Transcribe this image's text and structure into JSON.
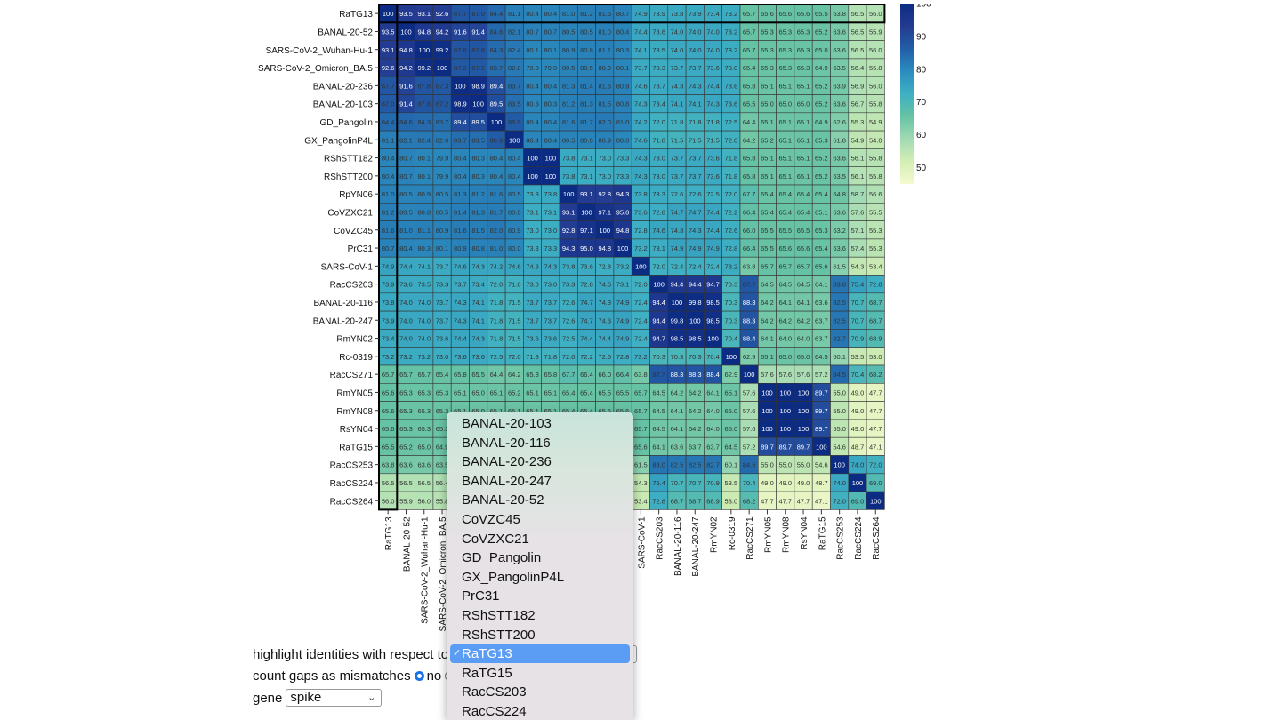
{
  "chart_data": {
    "type": "heatmap",
    "rows": [
      "RaTG13",
      "BANAL-20-52",
      "SARS-CoV-2_Wuhan-Hu-1",
      "SARS-CoV-2_Omicron_BA.5",
      "BANAL-20-236",
      "BANAL-20-103",
      "GD_Pangolin",
      "GX_PangolinP4L",
      "RShSTT182",
      "RShSTT200",
      "RpYN06",
      "CoVZXC21",
      "CoVZC45",
      "PrC31",
      "SARS-CoV-1",
      "RacCS203",
      "BANAL-20-116",
      "BANAL-20-247",
      "RmYN02",
      "Rc-0319",
      "RacCS271",
      "RmYN05",
      "RmYN08",
      "RsYN04",
      "RaTG15",
      "RacCS253",
      "RacCS224",
      "RacCS264"
    ],
    "columns": [
      "RaTG13",
      "BANAL-20-52",
      "SARS-CoV-2_Wuhan-Hu-1",
      "SARS-CoV-2_Omicron_BA.5",
      "BANAL-20-236",
      "BANAL-20-103",
      "GD_Pangolin",
      "GX_PangolinP4L",
      "RShSTT182",
      "RShSTT200",
      "RpYN06",
      "CoVZXC21",
      "CoVZC45",
      "PrC31",
      "SARS-CoV-1",
      "RacCS203",
      "BANAL-20-116",
      "BANAL-20-247",
      "RmYN02",
      "Rc-0319",
      "RacCS271",
      "RmYN05",
      "RmYN08",
      "RsYN04",
      "RaTG15",
      "RacCS253",
      "RacCS224",
      "RacCS264"
    ],
    "values": [
      [
        100,
        93.5,
        93.1,
        92.6,
        87.7,
        87.0,
        84.4,
        81.1,
        80.4,
        80.4,
        81.0,
        81.2,
        81.6,
        80.7,
        74.9,
        73.9,
        73.8,
        73.9,
        73.4,
        73.2,
        65.7,
        65.6,
        65.6,
        65.6,
        65.5,
        63.8,
        56.5,
        56.0
      ],
      [
        93.5,
        100,
        94.8,
        94.2,
        91.6,
        91.4,
        84.6,
        82.1,
        80.7,
        80.7,
        80.5,
        80.5,
        81.0,
        80.4,
        74.4,
        73.6,
        74.0,
        74.0,
        74.0,
        73.2,
        65.7,
        65.3,
        65.3,
        65.3,
        65.2,
        63.6,
        56.5,
        55.9
      ],
      [
        93.1,
        94.8,
        100,
        99.2,
        87.8,
        87.8,
        84.3,
        82.4,
        80.1,
        80.1,
        80.9,
        80.8,
        81.1,
        80.3,
        74.1,
        73.5,
        74.0,
        74.0,
        74.0,
        73.2,
        65.7,
        65.3,
        65.3,
        65.3,
        65.0,
        63.6,
        56.5,
        56.0
      ],
      [
        92.6,
        94.2,
        99.2,
        100,
        87.3,
        87.2,
        83.7,
        82.0,
        79.9,
        79.9,
        80.5,
        80.5,
        80.9,
        80.1,
        73.7,
        73.3,
        73.7,
        73.7,
        73.6,
        73.0,
        65.4,
        65.3,
        65.3,
        65.3,
        64.9,
        63.5,
        56.4,
        55.8
      ],
      [
        87.7,
        91.6,
        87.8,
        87.3,
        100,
        98.9,
        89.4,
        83.7,
        80.4,
        80.4,
        81.3,
        81.4,
        81.6,
        80.9,
        74.6,
        73.7,
        74.3,
        74.3,
        74.4,
        73.6,
        65.8,
        65.1,
        65.1,
        65.1,
        65.2,
        63.9,
        56.9,
        56.0
      ],
      [
        87.0,
        91.4,
        87.8,
        87.2,
        98.9,
        100,
        89.5,
        83.5,
        80.3,
        80.3,
        81.2,
        81.3,
        81.5,
        80.8,
        74.3,
        73.4,
        74.1,
        74.1,
        74.3,
        73.6,
        65.5,
        65.0,
        65.0,
        65.0,
        65.2,
        63.6,
        56.7,
        55.8
      ],
      [
        84.4,
        84.6,
        84.3,
        83.7,
        89.4,
        89.5,
        100,
        86.9,
        80.4,
        80.4,
        81.6,
        81.7,
        82.0,
        81.0,
        74.2,
        72.0,
        71.8,
        71.8,
        71.8,
        72.5,
        64.4,
        65.1,
        65.1,
        65.1,
        64.9,
        62.6,
        55.3,
        54.9
      ],
      [
        81.1,
        82.1,
        82.4,
        82.0,
        83.7,
        83.5,
        86.9,
        100,
        80.4,
        80.4,
        80.5,
        80.6,
        80.9,
        80.0,
        74.6,
        71.8,
        71.5,
        71.5,
        71.5,
        72.0,
        64.2,
        65.2,
        65.1,
        65.1,
        65.3,
        61.8,
        54.9,
        54.0
      ],
      [
        80.4,
        80.7,
        80.1,
        79.9,
        80.4,
        80.3,
        80.4,
        80.4,
        100,
        100,
        73.8,
        73.1,
        73.0,
        73.3,
        74.3,
        73.0,
        73.7,
        73.7,
        73.6,
        71.8,
        65.8,
        65.1,
        65.1,
        65.1,
        65.2,
        63.6,
        56.1,
        55.8
      ],
      [
        80.4,
        80.7,
        80.1,
        79.9,
        80.4,
        80.3,
        80.4,
        80.4,
        100,
        100,
        73.8,
        73.1,
        73.0,
        73.3,
        74.3,
        73.0,
        73.7,
        73.7,
        73.6,
        71.8,
        65.8,
        65.1,
        65.1,
        65.1,
        65.2,
        63.5,
        56.1,
        55.8
      ],
      [
        81.0,
        80.5,
        80.9,
        80.5,
        81.3,
        81.2,
        81.6,
        80.5,
        73.8,
        73.8,
        100,
        93.1,
        92.8,
        94.3,
        73.8,
        73.3,
        72.6,
        72.6,
        72.5,
        72.0,
        67.7,
        65.4,
        65.4,
        65.4,
        65.4,
        64.8,
        58.7,
        56.6
      ],
      [
        81.2,
        80.5,
        80.8,
        80.5,
        81.4,
        81.3,
        81.7,
        80.6,
        73.1,
        73.1,
        93.1,
        100,
        97.1,
        95.0,
        73.6,
        72.8,
        74.7,
        74.7,
        74.4,
        72.2,
        66.4,
        65.4,
        65.4,
        65.4,
        65.1,
        63.6,
        57.6,
        55.5
      ],
      [
        81.6,
        81.0,
        81.1,
        80.9,
        81.6,
        81.5,
        82.0,
        80.9,
        73.0,
        73.0,
        92.8,
        97.1,
        100,
        94.8,
        72.8,
        74.6,
        74.3,
        74.3,
        74.4,
        72.6,
        66.0,
        65.5,
        65.5,
        65.5,
        65.3,
        63.2,
        57.1,
        55.3
      ],
      [
        80.7,
        80.4,
        80.3,
        80.1,
        80.9,
        80.8,
        81.0,
        80.0,
        73.3,
        73.3,
        94.3,
        95.0,
        94.8,
        100,
        73.2,
        73.1,
        74.9,
        74.9,
        74.9,
        72.8,
        66.4,
        65.5,
        65.6,
        65.6,
        65.4,
        63.6,
        57.4,
        55.3
      ],
      [
        74.9,
        74.4,
        74.1,
        73.7,
        74.6,
        74.3,
        74.2,
        74.6,
        74.3,
        74.3,
        73.8,
        73.6,
        72.8,
        73.2,
        100,
        72.0,
        72.4,
        72.4,
        72.4,
        73.2,
        63.8,
        65.7,
        65.7,
        65.7,
        65.6,
        61.5,
        54.3,
        53.4
      ],
      [
        73.9,
        73.6,
        73.5,
        73.3,
        73.7,
        73.4,
        72.0,
        71.8,
        73.0,
        73.0,
        73.3,
        72.8,
        74.6,
        73.1,
        72.0,
        100,
        94.4,
        94.4,
        94.7,
        70.3,
        87.7,
        64.5,
        64.5,
        64.5,
        64.1,
        83.0,
        75.4,
        72.8
      ],
      [
        73.8,
        74.0,
        74.0,
        73.7,
        74.3,
        74.1,
        71.8,
        71.5,
        73.7,
        73.7,
        72.6,
        74.7,
        74.3,
        74.9,
        72.4,
        94.4,
        100,
        99.8,
        98.5,
        70.3,
        88.3,
        64.2,
        64.1,
        64.1,
        63.6,
        82.5,
        70.7,
        68.7
      ],
      [
        73.9,
        74.0,
        74.0,
        73.7,
        74.3,
        74.1,
        71.8,
        71.5,
        73.7,
        73.7,
        72.6,
        74.7,
        74.3,
        74.9,
        72.4,
        94.4,
        99.8,
        100,
        98.5,
        70.3,
        88.3,
        64.2,
        64.2,
        64.2,
        63.7,
        82.5,
        70.7,
        68.7
      ],
      [
        73.4,
        74.0,
        74.0,
        73.6,
        74.4,
        74.3,
        71.8,
        71.5,
        73.6,
        73.6,
        72.5,
        74.4,
        74.4,
        74.9,
        72.4,
        94.7,
        98.5,
        98.5,
        100,
        70.4,
        88.4,
        64.1,
        64.0,
        64.0,
        63.7,
        82.7,
        70.9,
        68.9
      ],
      [
        73.2,
        73.2,
        73.2,
        73.0,
        73.6,
        73.6,
        72.5,
        72.0,
        71.8,
        71.8,
        72.0,
        72.2,
        72.6,
        72.8,
        73.2,
        70.3,
        70.3,
        70.3,
        70.4,
        100,
        62.9,
        65.1,
        65.0,
        65.0,
        64.5,
        60.1,
        53.5,
        53.0
      ],
      [
        65.7,
        65.7,
        65.7,
        65.4,
        65.8,
        65.5,
        64.4,
        64.2,
        65.8,
        65.8,
        67.7,
        66.4,
        66.0,
        66.4,
        63.8,
        87.7,
        88.3,
        88.3,
        88.4,
        62.9,
        100,
        57.6,
        57.6,
        57.6,
        57.2,
        84.5,
        70.4,
        68.2
      ],
      [
        65.6,
        65.3,
        65.3,
        65.3,
        65.1,
        65.0,
        65.1,
        65.2,
        65.1,
        65.1,
        65.4,
        65.4,
        65.5,
        65.5,
        65.7,
        64.5,
        64.2,
        64.2,
        64.1,
        65.1,
        57.6,
        100,
        100,
        100,
        89.7,
        55.0,
        49.0,
        47.7
      ],
      [
        65.6,
        65.3,
        65.3,
        65.3,
        65.1,
        65.0,
        65.1,
        65.1,
        65.1,
        65.1,
        65.4,
        65.4,
        65.5,
        65.6,
        65.7,
        64.5,
        64.1,
        64.2,
        64.0,
        65.0,
        57.6,
        100,
        100,
        100,
        89.7,
        55.0,
        49.0,
        47.7
      ],
      [
        65.6,
        65.3,
        65.3,
        65.3,
        65.1,
        65.0,
        65.1,
        65.1,
        65.1,
        65.1,
        65.4,
        65.4,
        65.5,
        65.6,
        65.7,
        64.5,
        64.1,
        64.2,
        64.0,
        65.0,
        57.6,
        100,
        100,
        100,
        89.7,
        55.0,
        49.0,
        47.7
      ],
      [
        65.5,
        65.2,
        65.0,
        64.9,
        65.2,
        65.2,
        64.9,
        65.3,
        65.2,
        65.2,
        65.4,
        65.1,
        65.3,
        65.4,
        65.6,
        64.1,
        63.6,
        63.7,
        63.7,
        64.5,
        57.2,
        89.7,
        89.7,
        89.7,
        100,
        54.6,
        48.7,
        47.1
      ],
      [
        63.8,
        63.6,
        63.6,
        63.5,
        63.9,
        63.6,
        62.6,
        61.8,
        63.6,
        63.5,
        64.8,
        63.6,
        63.2,
        63.6,
        61.5,
        83.0,
        82.5,
        82.5,
        82.7,
        60.1,
        84.5,
        55.0,
        55.0,
        55.0,
        54.6,
        100,
        74.0,
        72.0
      ],
      [
        56.5,
        56.5,
        56.5,
        56.4,
        56.9,
        56.7,
        55.3,
        54.9,
        56.1,
        56.1,
        58.7,
        57.6,
        57.1,
        57.4,
        54.3,
        75.4,
        70.7,
        70.7,
        70.9,
        53.5,
        70.4,
        49.0,
        49.0,
        49.0,
        48.7,
        74.0,
        100,
        69.0
      ],
      [
        56.0,
        55.9,
        56.0,
        55.8,
        56.0,
        55.8,
        54.9,
        54.0,
        55.8,
        55.8,
        56.6,
        55.5,
        55.3,
        55.3,
        53.4,
        72.8,
        68.7,
        68.7,
        68.9,
        53.0,
        68.2,
        47.7,
        47.7,
        47.7,
        47.1,
        72.0,
        69.0,
        100
      ]
    ],
    "highlight": "RaTG13",
    "colorscale": {
      "min": 45,
      "max": 100,
      "ticks": [
        50,
        60,
        70,
        80,
        90,
        100
      ],
      "stops": [
        "#f4fad0",
        "#d4eeb3",
        "#a1dab4",
        "#66c2a4",
        "#3eb0c3",
        "#2b8cbe",
        "#225ea8",
        "#233b91",
        "#0c2c84"
      ]
    }
  },
  "controls": {
    "highlight_label": "highlight identities with respect to",
    "gaps_label": "count gaps as mismatches",
    "gaps_no": "no",
    "gene_label": "gene",
    "gene_value": "spike"
  },
  "dropdown": {
    "items": [
      "BANAL-20-103",
      "BANAL-20-116",
      "BANAL-20-236",
      "BANAL-20-247",
      "BANAL-20-52",
      "CoVZC45",
      "CoVZXC21",
      "GD_Pangolin",
      "GX_PangolinP4L",
      "PrC31",
      "RShSTT182",
      "RShSTT200",
      "RaTG13",
      "RaTG15",
      "RacCS203",
      "RacCS224"
    ],
    "selected": "RaTG13",
    "check": "✓"
  }
}
